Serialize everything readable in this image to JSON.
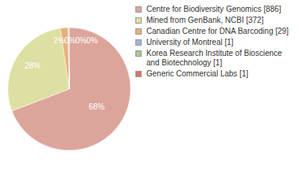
{
  "chart_data": {
    "type": "pie",
    "categories": [
      "Centre for Biodiversity Genomics [886]",
      "Mined from GenBank, NCBI [372]",
      "Canadian Centre for DNA Barcoding [29]",
      "University of Montreal [1]",
      "Korea Research Institute of Bioscience and Biotechnology [1]",
      "Generic Commercial Labs [1]"
    ],
    "values": [
      68,
      28,
      2,
      0.1,
      0.1,
      0.1
    ],
    "value_labels": [
      "68%",
      "28%",
      "2%",
      "0%",
      "0%",
      "0%"
    ],
    "data_labels": true,
    "legend": "right",
    "colors": [
      "#dca59b",
      "#dde0a2",
      "#e8b17c",
      "#9db5d9",
      "#a9c98d",
      "#d8795e"
    ]
  }
}
